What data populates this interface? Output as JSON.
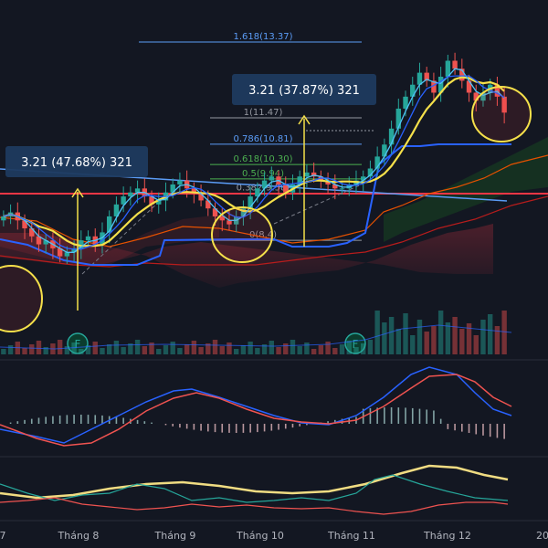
{
  "chart_data": {
    "type": "candlestick",
    "x_ticks": [
      "7",
      "Tháng 8",
      "Tháng 9",
      "Tháng 10",
      "Tháng 11",
      "Tháng 12",
      "20"
    ],
    "fib_levels": [
      {
        "label": "1.618(13.37)",
        "value": 13.37,
        "color": "#5b9cf6"
      },
      {
        "label": "1(11.47)",
        "value": 11.47,
        "color": "#9598a1"
      },
      {
        "label": "0.786(10.81)",
        "value": 10.81,
        "color": "#5b9cf6"
      },
      {
        "label": "0.618(10.30)",
        "value": 10.3,
        "color": "#4caf50"
      },
      {
        "label": "0.5(9.94)",
        "value": 9.94,
        "color": "#4caf50"
      },
      {
        "label": "0.382(9.58)",
        "value": 9.58,
        "color": "#9598a1"
      },
      {
        "label": "0(8.4)",
        "value": 8.4,
        "color": "#9598a1"
      }
    ],
    "annotations": [
      {
        "text": "3.21 (47.68%) 321"
      },
      {
        "text": "3.21 (37.87%) 321"
      }
    ],
    "markers": [
      "F",
      "F"
    ],
    "closes": [
      9.0,
      9.1,
      8.9,
      8.7,
      8.5,
      8.3,
      8.4,
      8.2,
      8.0,
      8.1,
      8.2,
      8.4,
      8.5,
      8.3,
      8.6,
      9.0,
      9.3,
      9.5,
      9.6,
      9.7,
      9.5,
      9.3,
      9.4,
      9.6,
      9.8,
      9.9,
      9.7,
      9.6,
      9.4,
      9.2,
      9.0,
      8.9,
      8.8,
      9.0,
      9.2,
      9.5,
      9.7,
      9.9,
      10.0,
      9.8,
      9.6,
      9.8,
      10.0,
      10.1,
      10.0,
      9.9,
      9.8,
      9.7,
      9.7,
      9.8,
      9.9,
      10.0,
      10.2,
      10.5,
      10.8,
      11.2,
      11.7,
      12.0,
      12.3,
      12.6,
      12.4,
      12.1,
      12.5,
      12.9,
      12.7,
      12.4,
      12.1,
      11.9,
      12.1,
      12.3,
      12.0,
      11.6
    ],
    "colors": {
      "up": "#26a69a",
      "down": "#ef5350",
      "resistance": "#f23645",
      "highlight": "#f5e04a"
    }
  }
}
